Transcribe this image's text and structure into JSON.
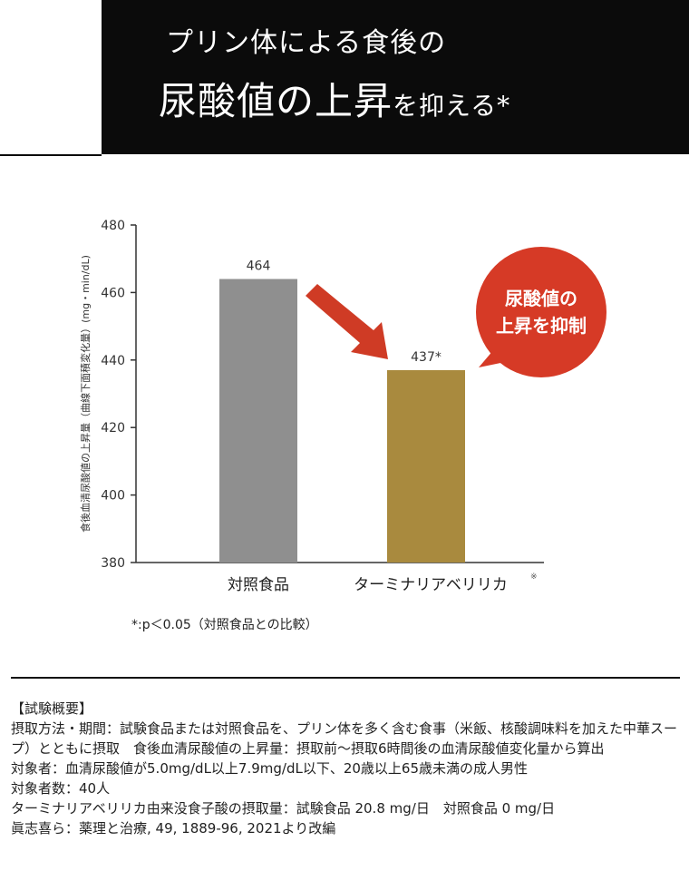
{
  "header": {
    "title_line1": "プリン体による食後の",
    "title_line2_main": "尿酸値の上昇",
    "title_line2_suffix": "を抑える*"
  },
  "chart_data": {
    "type": "bar",
    "categories": [
      "対照食品",
      "ターミナリアベリリカ"
    ],
    "category_superscript": [
      "",
      "※"
    ],
    "values": [
      464,
      437
    ],
    "data_labels": [
      "464",
      "437*"
    ],
    "ylabel": "食後血清尿酸値の上昇量（曲線下面積変化量）(mg・min/dL)",
    "ylim": [
      380,
      480
    ],
    "yticks": [
      "380",
      "400",
      "420",
      "440",
      "460",
      "480"
    ],
    "bar_colors": [
      "#8f8f8f",
      "#a98a3e"
    ],
    "callout": {
      "line1": "尿酸値の",
      "line2": "上昇を抑制",
      "color": "#d63a26"
    },
    "arrow_color": "#cf3b25",
    "grid": false
  },
  "footnote": "*:p＜0.05（対照食品との比較）",
  "notes": {
    "heading": "【試験概要】",
    "lines": [
      "摂取方法・期間：試験食品または対照食品を、プリン体を多く含む食事（米飯、核酸調味料を加えた中華スープ）とともに摂取　食後血清尿酸値の上昇量：摂取前～摂取6時間後の血清尿酸値変化量から算出",
      "対象者：血清尿酸値が5.0mg/dL以上7.9mg/dL以下、20歳以上65歳未満の成人男性",
      "対象者数：40人",
      "ターミナリアベリリカ由来没食子酸の摂取量：試験食品 20.8 mg/日　対照食品 0 mg/日",
      "眞志喜ら：薬理と治療, 49, 1889-96, 2021より改編"
    ]
  }
}
